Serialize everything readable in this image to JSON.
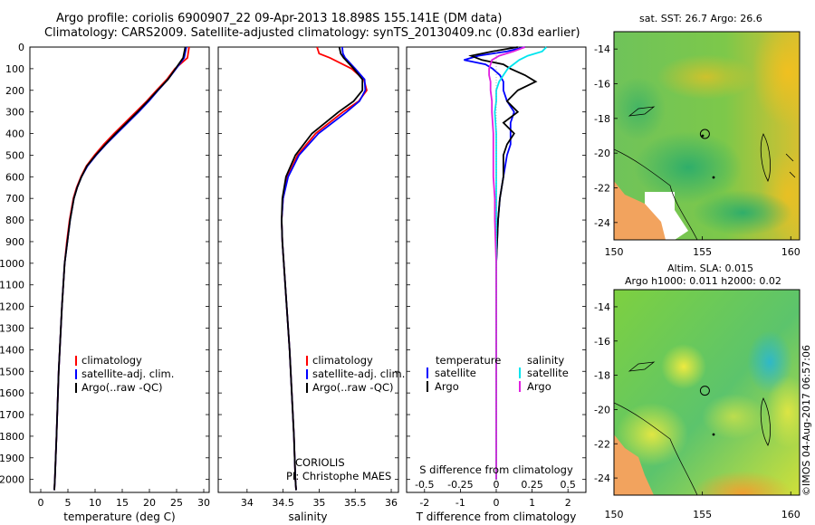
{
  "header": {
    "line1": "Argo profile: coriolis 6900907_22 09-Apr-2013 18.898S 155.141E (DM data)",
    "line2": "Climatology: CARS2009. Satellite-adjusted climatology: synTS_20130409.nc (0.83d earlier)"
  },
  "colors": {
    "climatology": "#ff0000",
    "satellite": "#0000ff",
    "argo": "#000000",
    "salinity_satellite": "#00e5ee",
    "salinity_argo": "#e020e0"
  },
  "chart_data": [
    {
      "type": "line",
      "name": "temperature-profile",
      "xlabel": "temperature (deg C)",
      "ylabel": "",
      "xlim": [
        -2,
        31
      ],
      "ylim": [
        2060,
        0
      ],
      "xticks": [
        "0",
        "5",
        "10",
        "15",
        "20",
        "25",
        "30"
      ],
      "yticks": [
        "0",
        "100",
        "200",
        "300",
        "400",
        "500",
        "600",
        "700",
        "800",
        "900",
        "1000",
        "1100",
        "1200",
        "1300",
        "1400",
        "1500",
        "1600",
        "1700",
        "1800",
        "1900",
        "2000"
      ],
      "legend": [
        "climatology",
        "satellite-adj. clim.",
        "Argo(..raw -QC)"
      ],
      "series": [
        {
          "name": "climatology",
          "color": "#ff0000",
          "depth": [
            0,
            50,
            100,
            150,
            200,
            250,
            300,
            350,
            400,
            450,
            500,
            550,
            600,
            650,
            700,
            800,
            900,
            1000,
            1200,
            1500,
            1800,
            2000,
            2050
          ],
          "value": [
            27.3,
            27.0,
            24.7,
            23.2,
            21.3,
            19.5,
            17.5,
            15.5,
            13.5,
            11.6,
            9.9,
            8.4,
            7.4,
            6.6,
            6.0,
            5.3,
            4.8,
            4.4,
            3.9,
            3.3,
            2.9,
            2.6,
            2.5
          ]
        },
        {
          "name": "satellite-adj. clim.",
          "color": "#0000ff",
          "depth": [
            0,
            50,
            100,
            150,
            200,
            250,
            300,
            350,
            400,
            450,
            500,
            550,
            600,
            650,
            700,
            800,
            900,
            1000,
            1200,
            1500,
            1800,
            2000,
            2050
          ],
          "value": [
            26.8,
            26.4,
            24.9,
            23.4,
            21.6,
            19.9,
            18.0,
            16.0,
            14.0,
            12.0,
            10.2,
            8.6,
            7.5,
            6.7,
            6.1,
            5.4,
            4.9,
            4.4,
            3.9,
            3.3,
            2.9,
            2.6,
            2.5
          ]
        },
        {
          "name": "Argo(..raw -QC)",
          "color": "#000000",
          "depth": [
            0,
            50,
            100,
            150,
            200,
            250,
            300,
            350,
            400,
            450,
            500,
            550,
            600,
            650,
            700,
            800,
            900,
            1000,
            1200,
            1500,
            1800,
            2000,
            2050
          ],
          "value": [
            26.6,
            26.2,
            24.8,
            23.4,
            21.5,
            19.7,
            17.8,
            15.8,
            13.8,
            11.9,
            10.1,
            8.5,
            7.5,
            6.7,
            6.1,
            5.4,
            4.9,
            4.4,
            3.9,
            3.3,
            2.9,
            2.6,
            2.5
          ]
        }
      ]
    },
    {
      "type": "line",
      "name": "salinity-profile",
      "xlabel": "salinity",
      "xlim": [
        33.6,
        36.1
      ],
      "ylim": [
        2060,
        0
      ],
      "xticks": [
        "34",
        "34.5",
        "35",
        "35.5",
        "36"
      ],
      "legend": [
        "climatology",
        "satellite-adj. clim.",
        "Argo(..raw -QC)"
      ],
      "annotation": [
        "CORIOLIS",
        "PI: Christophe MAES"
      ],
      "series": [
        {
          "name": "climatology",
          "color": "#ff0000",
          "depth": [
            0,
            30,
            50,
            100,
            150,
            200,
            250,
            300,
            400,
            500,
            600,
            700,
            800,
            900,
            1000,
            1200,
            1400,
            1600,
            1800,
            2000,
            2050
          ],
          "value": [
            34.97,
            35.0,
            35.15,
            35.45,
            35.62,
            35.66,
            35.55,
            35.33,
            34.95,
            34.7,
            34.56,
            34.5,
            34.48,
            34.49,
            34.51,
            34.55,
            34.59,
            34.62,
            34.65,
            34.67,
            34.68
          ]
        },
        {
          "name": "satellite-adj. clim.",
          "color": "#0000ff",
          "depth": [
            0,
            30,
            50,
            100,
            150,
            200,
            250,
            300,
            400,
            500,
            600,
            700,
            800,
            900,
            1000,
            1200,
            1400,
            1600,
            1800,
            2000,
            2050
          ],
          "value": [
            35.32,
            35.33,
            35.36,
            35.5,
            35.63,
            35.64,
            35.56,
            35.38,
            34.99,
            34.72,
            34.57,
            34.5,
            34.48,
            34.49,
            34.51,
            34.55,
            34.59,
            34.62,
            34.65,
            34.67,
            34.68
          ]
        },
        {
          "name": "Argo(..raw -QC)",
          "color": "#000000",
          "depth": [
            0,
            30,
            50,
            100,
            150,
            200,
            250,
            300,
            400,
            500,
            600,
            700,
            800,
            900,
            1000,
            1200,
            1400,
            1600,
            1800,
            2000,
            2050
          ],
          "value": [
            35.28,
            35.3,
            35.34,
            35.48,
            35.6,
            35.6,
            35.48,
            35.27,
            34.9,
            34.67,
            34.54,
            34.49,
            34.48,
            34.49,
            34.51,
            34.55,
            34.59,
            34.62,
            34.65,
            34.67,
            34.68
          ]
        }
      ]
    },
    {
      "type": "line",
      "name": "difference-profile",
      "xlabel": "T difference from climatology",
      "x2label": "S difference from climatology",
      "xlim": [
        -2.5,
        2.5
      ],
      "ylim": [
        2060,
        0
      ],
      "xticks": [
        "-2",
        "-1",
        "0",
        "1",
        "2"
      ],
      "x2ticks": [
        "-0.5",
        "-0.25",
        "0",
        "0.25",
        "0.5"
      ],
      "legend_headers": [
        "temperature",
        "salinity"
      ],
      "legend": [
        "satellite",
        "Argo",
        "satellite",
        "Argo"
      ],
      "series": [
        {
          "name": "temperature satellite",
          "color": "#0000ff",
          "depth": [
            0,
            20,
            40,
            60,
            80,
            100,
            130,
            160,
            200,
            250,
            300,
            350,
            400,
            450,
            500,
            600,
            700,
            800,
            1000,
            1500,
            2000
          ],
          "value": [
            0.8,
            0.3,
            -0.5,
            -0.9,
            -0.3,
            -0.1,
            0.1,
            0.2,
            0.2,
            0.3,
            0.5,
            0.4,
            0.4,
            0.4,
            0.3,
            0.2,
            0.1,
            0.05,
            0.0,
            0.0,
            0.0
          ]
        },
        {
          "name": "temperature Argo",
          "color": "#000000",
          "depth": [
            0,
            20,
            40,
            60,
            80,
            100,
            130,
            160,
            200,
            250,
            300,
            350,
            400,
            450,
            500,
            600,
            700,
            800,
            1000,
            1500,
            2000
          ],
          "value": [
            0.6,
            -0.1,
            -0.7,
            -0.4,
            0.2,
            0.4,
            0.8,
            1.1,
            0.6,
            0.3,
            0.6,
            0.2,
            0.5,
            0.3,
            0.2,
            0.2,
            0.1,
            0.05,
            0.0,
            0.0,
            0.0
          ]
        },
        {
          "name": "salinity satellite",
          "color": "#00e5ee",
          "depth": [
            0,
            20,
            40,
            60,
            80,
            100,
            130,
            160,
            200,
            250,
            300,
            400,
            500,
            600,
            700,
            800,
            1000,
            1500,
            2000
          ],
          "value": [
            0.35,
            0.32,
            0.22,
            0.16,
            0.12,
            0.08,
            0.05,
            0.02,
            0.0,
            0.0,
            -0.01,
            0.0,
            0.0,
            0.0,
            0.0,
            0.0,
            0.0,
            0.0,
            0.0
          ]
        },
        {
          "name": "salinity Argo",
          "color": "#e020e0",
          "depth": [
            0,
            20,
            40,
            60,
            80,
            100,
            130,
            160,
            200,
            250,
            300,
            400,
            500,
            600,
            700,
            800,
            1000,
            1500,
            2000
          ],
          "value": [
            0.2,
            0.12,
            0.02,
            -0.03,
            -0.04,
            -0.05,
            -0.05,
            -0.04,
            -0.04,
            -0.03,
            -0.03,
            -0.02,
            -0.02,
            -0.02,
            -0.01,
            -0.01,
            0.0,
            0.0,
            0.0
          ]
        }
      ]
    },
    {
      "type": "heatmap",
      "name": "sst-map",
      "title": "sat. SST: 26.7  Argo: 26.6",
      "xlim": [
        150,
        160.5
      ],
      "ylim": [
        -25,
        -13
      ],
      "xticks": [
        "150",
        "155",
        "160"
      ],
      "yticks": [
        "-14",
        "-16",
        "-18",
        "-20",
        "-22",
        "-24"
      ],
      "float_position": [
        155.141,
        -18.898
      ]
    },
    {
      "type": "heatmap",
      "name": "sla-map",
      "title_line1": "Altim. SLA: 0.015",
      "title_line2": "Argo h1000: 0.011  h2000: 0.02",
      "xlim": [
        150,
        160.5
      ],
      "ylim": [
        -25,
        -13
      ],
      "xticks": [
        "150",
        "155",
        "160"
      ],
      "yticks": [
        "-14",
        "-16",
        "-18",
        "-20",
        "-22",
        "-24"
      ],
      "float_position": [
        155.141,
        -18.898
      ]
    }
  ],
  "stamp": "©IMOS 04-Aug-2017 06:57:06"
}
